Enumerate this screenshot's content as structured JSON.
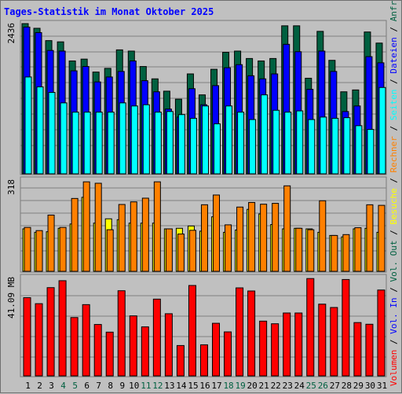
{
  "title": "Tages-Statistik im Monat Oktober 2025",
  "chart_data": [
    {
      "type": "bar",
      "panel": "requests",
      "y_max_label": "2436",
      "ylim": [
        0,
        2436
      ],
      "x": [
        "1",
        "2",
        "3",
        "4",
        "5",
        "6",
        "7",
        "8",
        "9",
        "10",
        "11",
        "12",
        "13",
        "14",
        "15",
        "16",
        "17",
        "18",
        "19",
        "20",
        "21",
        "22",
        "23",
        "24",
        "25",
        "26",
        "27",
        "28",
        "29",
        "30",
        "31"
      ],
      "weekend_days": [
        "4",
        "5",
        "11",
        "12",
        "18",
        "19",
        "25",
        "26"
      ],
      "series": [
        {
          "name": "Anfragen",
          "color": "#006040",
          "values": [
            2436,
            2360,
            2160,
            2140,
            1830,
            1860,
            1650,
            1710,
            2010,
            1990,
            1740,
            1540,
            1340,
            1210,
            1620,
            1280,
            1695,
            1970,
            1990,
            1870,
            1830,
            1870,
            2400,
            2400,
            1550,
            2310,
            1840,
            1330,
            1360,
            2300,
            2120
          ]
        },
        {
          "name": "Dateien",
          "color": "#0000ff",
          "values": [
            2380,
            2290,
            2000,
            1990,
            1670,
            1740,
            1490,
            1570,
            1660,
            1830,
            1510,
            1330,
            1050,
            920,
            1380,
            1120,
            1430,
            1720,
            1770,
            1590,
            1540,
            1620,
            2100,
            1980,
            1370,
            1990,
            1660,
            1010,
            1100,
            1900,
            1800
          ]
        },
        {
          "name": "Seiten",
          "color": "#00ffff",
          "values": [
            1570,
            1410,
            1320,
            1150,
            1000,
            1000,
            1000,
            1000,
            1150,
            1100,
            1120,
            1000,
            1010,
            960,
            900,
            1100,
            810,
            1100,
            1000,
            880,
            1280,
            1030,
            1000,
            1020,
            880,
            920,
            900,
            910,
            780,
            720,
            1400
          ]
        }
      ]
    },
    {
      "type": "bar",
      "panel": "visits",
      "y_max_label": "318",
      "ylim": [
        0,
        318
      ],
      "x": [
        "1",
        "2",
        "3",
        "4",
        "5",
        "6",
        "7",
        "8",
        "9",
        "10",
        "11",
        "12",
        "13",
        "14",
        "15",
        "16",
        "17",
        "18",
        "19",
        "20",
        "21",
        "22",
        "23",
        "24",
        "25",
        "26",
        "27",
        "28",
        "29",
        "30",
        "31"
      ],
      "series": [
        {
          "name": "Besuche",
          "color": "#ffff00",
          "values": [
            148,
            136,
            138,
            150,
            165,
            258,
            168,
            183,
            180,
            168,
            168,
            168,
            148,
            150,
            158,
            140,
            190,
            136,
            144,
            216,
            200,
            163,
            148,
            150,
            148,
            136,
            125,
            120,
            148,
            150,
            136
          ]
        },
        {
          "name": "Rechner",
          "color": "#ff8000",
          "values": [
            153,
            142,
            196,
            153,
            254,
            312,
            307,
            145,
            233,
            242,
            255,
            312,
            148,
            130,
            143,
            232,
            266,
            162,
            224,
            240,
            234,
            237,
            298,
            150,
            145,
            246,
            125,
            128,
            152,
            232,
            230
          ]
        }
      ]
    },
    {
      "type": "bar",
      "panel": "volume",
      "y_max_label": "41.09 MB",
      "ylim": [
        0,
        41.09
      ],
      "x": [
        "1",
        "2",
        "3",
        "4",
        "5",
        "6",
        "7",
        "8",
        "9",
        "10",
        "11",
        "12",
        "13",
        "14",
        "15",
        "16",
        "17",
        "18",
        "19",
        "20",
        "21",
        "22",
        "23",
        "24",
        "25",
        "26",
        "27",
        "28",
        "29",
        "30",
        "31"
      ],
      "series": [
        {
          "name": "Volumen",
          "color": "#ff0000",
          "values": [
            32.7,
            30.2,
            36.9,
            39.8,
            24.4,
            29.8,
            21.5,
            18.3,
            35.6,
            25.1,
            20.5,
            32.1,
            26.0,
            12.7,
            37.8,
            13.0,
            22.0,
            18.4,
            36.8,
            35.5,
            22.9,
            21.8,
            26.3,
            26.3,
            40.7,
            30.0,
            28.6,
            40.3,
            22.3,
            21.6,
            35.9
          ]
        }
      ]
    }
  ],
  "right_legend": [
    {
      "text": "Volumen",
      "color": "#ff0000"
    },
    {
      "text": " / ",
      "color": "#000000"
    },
    {
      "text": "Vol. In",
      "color": "#0000ff"
    },
    {
      "text": " / ",
      "color": "#000000"
    },
    {
      "text": "Vol. Out",
      "color": "#006040"
    },
    {
      "text": " / ",
      "color": "#000000"
    },
    {
      "text": "Besuche",
      "color": "#ffff00"
    },
    {
      "text": " / ",
      "color": "#000000"
    },
    {
      "text": "Rechner",
      "color": "#ff8000"
    },
    {
      "text": " / ",
      "color": "#000000"
    },
    {
      "text": "Seiten",
      "color": "#00ffff"
    },
    {
      "text": " / ",
      "color": "#000000"
    },
    {
      "text": "Dateien",
      "color": "#0000ff"
    },
    {
      "text": " / ",
      "color": "#000000"
    },
    {
      "text": "Anfragen",
      "color": "#006040"
    }
  ],
  "colors": {
    "weekday_label": "#000000",
    "weekend_label": "#006040",
    "grid": "#808080",
    "background": "#c0c0c0"
  }
}
